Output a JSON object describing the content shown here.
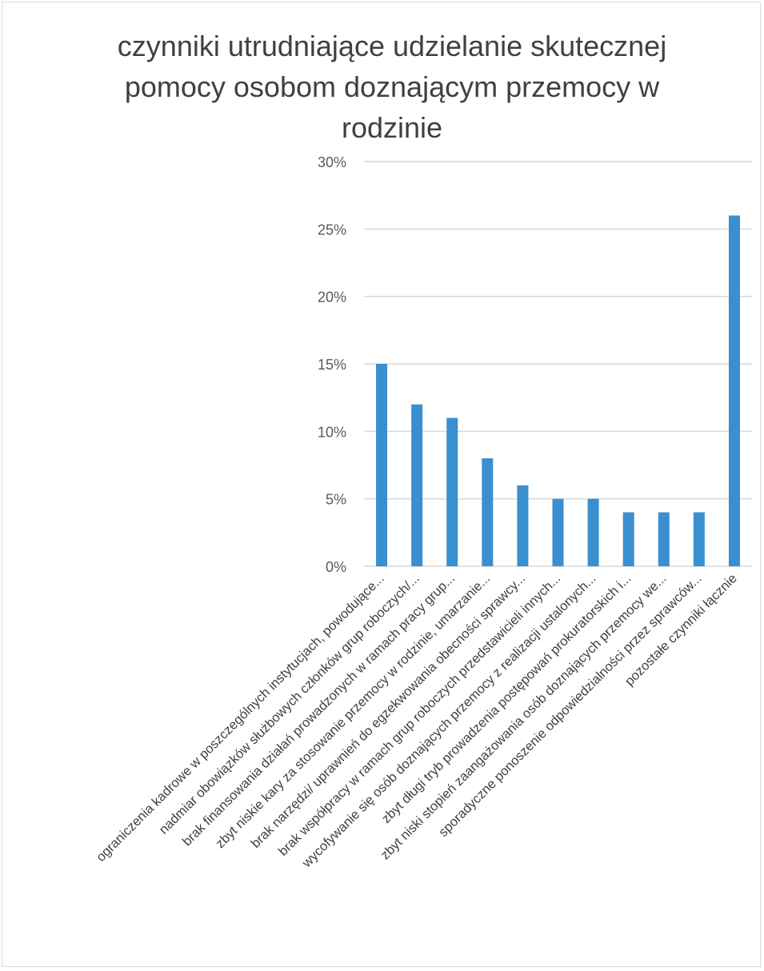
{
  "chart_data": {
    "type": "bar",
    "title": "czynniki utrudniające udzielanie skutecznej pomocy osobom doznającym przemocy w rodzinie",
    "xlabel": "",
    "ylabel": "",
    "ylim": [
      0,
      0.3
    ],
    "yticks": [
      {
        "value": 0,
        "label": "0%"
      },
      {
        "value": 0.05,
        "label": "5%"
      },
      {
        "value": 0.1,
        "label": "10%"
      },
      {
        "value": 0.15,
        "label": "15%"
      },
      {
        "value": 0.2,
        "label": "20%"
      },
      {
        "value": 0.25,
        "label": "25%"
      },
      {
        "value": 0.3,
        "label": "30%"
      }
    ],
    "grid": true,
    "legend": "none",
    "bar_color": "#3a8fd0",
    "categories": [
      "ograniczenia kadrowe w poszczególnych instytucjach, powodujące...",
      "nadmiar obowiązków służbowych członków grup roboczych/...",
      "brak finansowania działań prowadzonych w ramach pracy grup...",
      "zbyt niskie kary za stosowanie przemocy w rodzinie, umarzanie...",
      "brak narzędzi/ uprawnień do egzekwowania obecności sprawcy...",
      "brak współpracy w ramach grup roboczych  przedstawicieli innych...",
      "wycofywanie się osób doznających przemocy z realizacji ustalonych...",
      "zbyt długi tryb prowadzenia postępowań prokuratorskich i...",
      "zbyt niski stopień zaangażowania osób doznających przemocy we...",
      "sporadyczne ponoszenie odpowiedzialności przez sprawców...",
      "pozostałe czynniki łącznie"
    ],
    "values": [
      0.15,
      0.12,
      0.11,
      0.08,
      0.06,
      0.05,
      0.05,
      0.04,
      0.04,
      0.04,
      0.26
    ]
  }
}
